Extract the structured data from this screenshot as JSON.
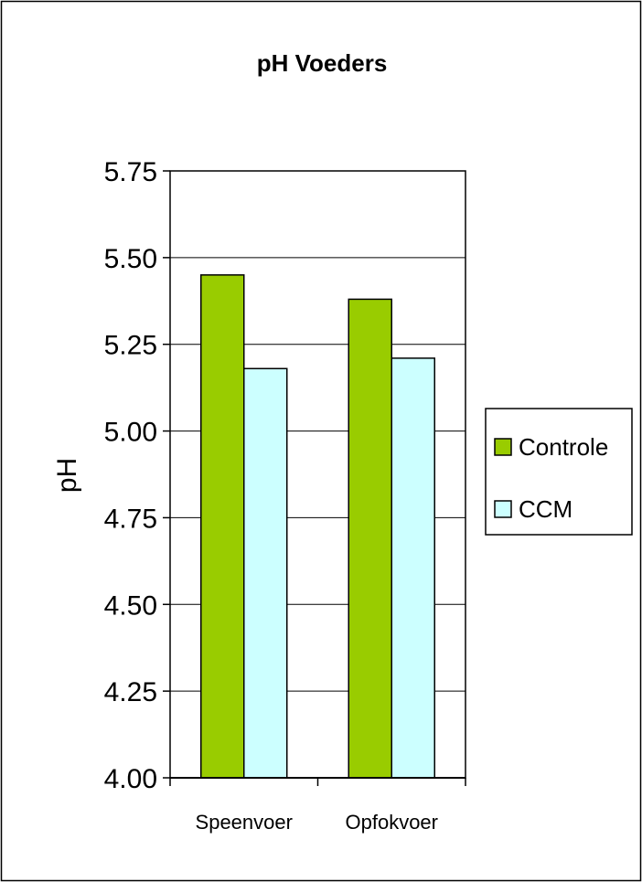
{
  "chart_data": {
    "type": "bar",
    "title": "pH Voeders",
    "xlabel": "",
    "ylabel": "pH",
    "categories": [
      "Speenvoer",
      "Opfokvoer"
    ],
    "series": [
      {
        "name": "Controle",
        "values": [
          5.45,
          5.38
        ],
        "color": "#99cc00"
      },
      {
        "name": "CCM",
        "values": [
          5.18,
          5.21
        ],
        "color": "#ccffff"
      }
    ],
    "ylim": [
      4.0,
      5.75
    ],
    "yticks": [
      "4.00",
      "4.25",
      "4.50",
      "4.75",
      "5.00",
      "5.25",
      "5.50",
      "5.75"
    ],
    "grid": true,
    "legend": "right"
  }
}
